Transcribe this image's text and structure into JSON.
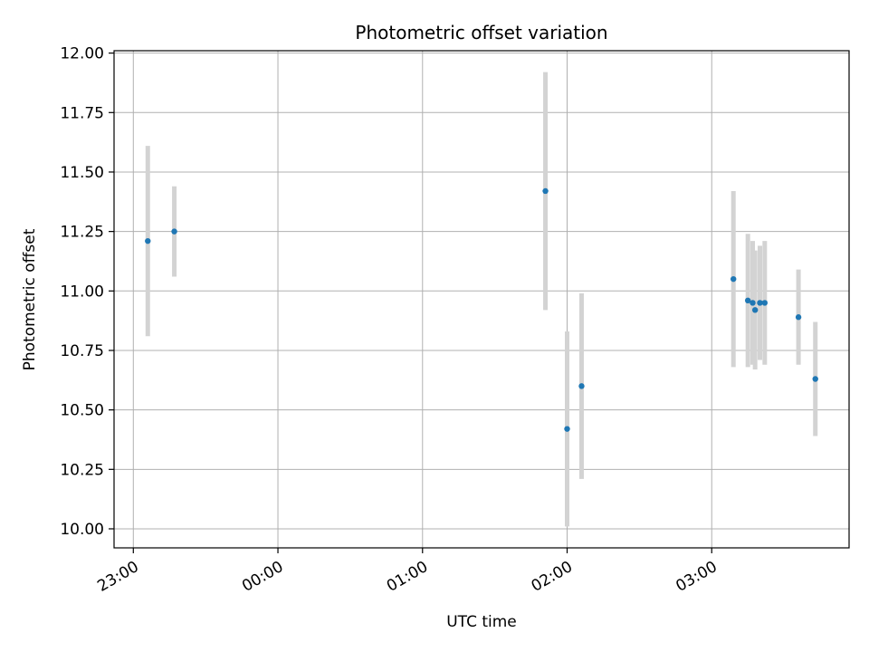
{
  "chart_data": {
    "type": "scatter",
    "title": "Photometric offset variation",
    "xlabel": "UTC time",
    "ylabel": "Photometric offset",
    "x_axis": {
      "kind": "time",
      "ticks": [
        "23:00",
        "00:00",
        "01:00",
        "02:00",
        "03:00"
      ],
      "tick_times": [
        "23:00",
        "00:00",
        "01:00",
        "02:00",
        "03:00"
      ],
      "range": [
        "22:52",
        "03:57"
      ]
    },
    "ylim": [
      9.92,
      12.01
    ],
    "y_ticks": [
      "10.00",
      "10.25",
      "10.50",
      "10.75",
      "11.00",
      "11.25",
      "11.50",
      "11.75",
      "12.00"
    ],
    "grid": true,
    "marker_color": "#1f77b4",
    "errorbar_color": "#d3d3d3",
    "points": [
      {
        "time": "23:06",
        "y": 11.21,
        "err": 0.4
      },
      {
        "time": "23:17",
        "y": 11.25,
        "err": 0.19
      },
      {
        "time": "01:51",
        "y": 11.42,
        "err": 0.5
      },
      {
        "time": "02:00",
        "y": 10.42,
        "err": 0.41
      },
      {
        "time": "02:06",
        "y": 10.6,
        "err": 0.39
      },
      {
        "time": "03:09",
        "y": 11.05,
        "err": 0.37
      },
      {
        "time": "03:15",
        "y": 10.96,
        "err": 0.28
      },
      {
        "time": "03:17",
        "y": 10.95,
        "err": 0.26
      },
      {
        "time": "03:18",
        "y": 10.92,
        "err": 0.25
      },
      {
        "time": "03:20",
        "y": 10.95,
        "err": 0.24
      },
      {
        "time": "03:22",
        "y": 10.95,
        "err": 0.26
      },
      {
        "time": "03:36",
        "y": 10.89,
        "err": 0.2
      },
      {
        "time": "03:43",
        "y": 10.63,
        "err": 0.24
      }
    ]
  }
}
